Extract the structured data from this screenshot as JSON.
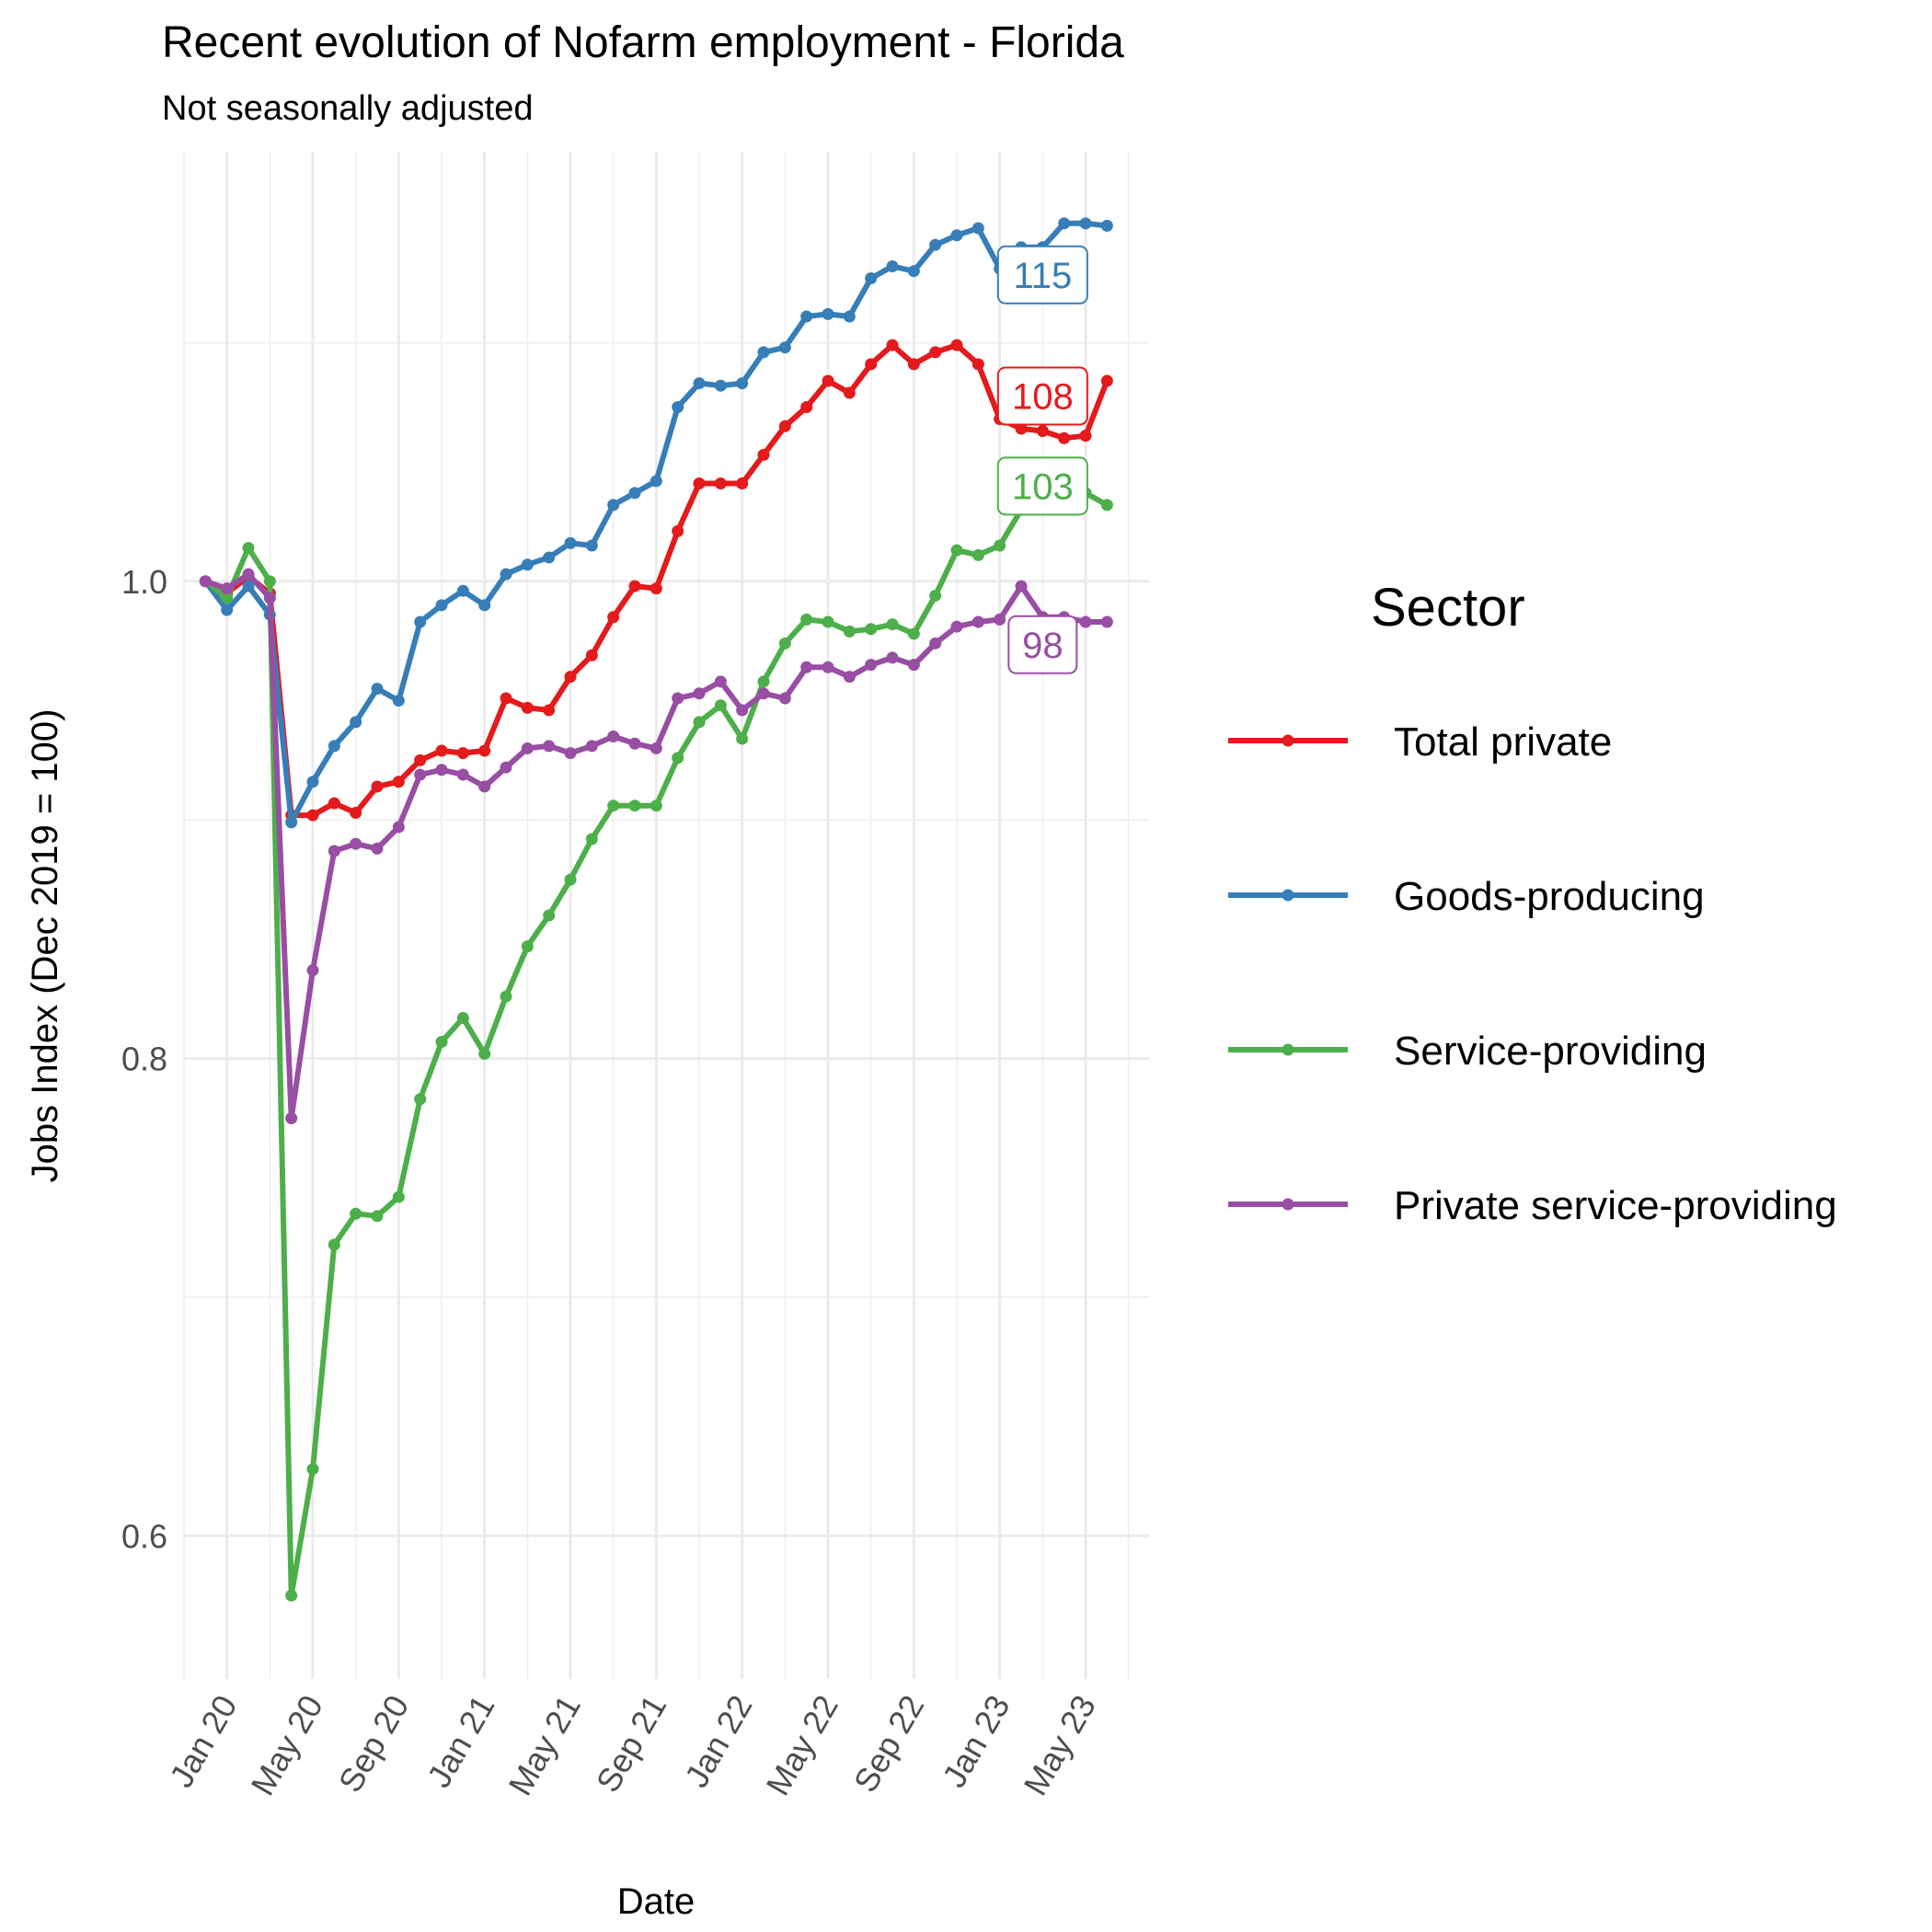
{
  "chart_data": {
    "type": "line",
    "title": "Recent evolution of Nofarm employment - Florida",
    "subtitle": "Not seasonally adjusted",
    "xlabel": "Date",
    "ylabel": "Jobs Index (Dec 2019 = 100)",
    "ylim": [
      0.54,
      1.18
    ],
    "y_ticks": [
      {
        "value": 0.6,
        "label": "0.6"
      },
      {
        "value": 0.8,
        "label": "0.8"
      },
      {
        "value": 1.0,
        "label": "1.0"
      }
    ],
    "x_range": [
      "2019-11",
      "2023-08"
    ],
    "x_ticks": [
      {
        "date": "2020-01",
        "label": "Jan 20"
      },
      {
        "date": "2020-05",
        "label": "May 20"
      },
      {
        "date": "2020-09",
        "label": "Sep 20"
      },
      {
        "date": "2021-01",
        "label": "Jan 21"
      },
      {
        "date": "2021-05",
        "label": "May 21"
      },
      {
        "date": "2021-09",
        "label": "Sep 21"
      },
      {
        "date": "2022-01",
        "label": "Jan 22"
      },
      {
        "date": "2022-05",
        "label": "May 22"
      },
      {
        "date": "2022-09",
        "label": "Sep 22"
      },
      {
        "date": "2023-01",
        "label": "Jan 23"
      },
      {
        "date": "2023-05",
        "label": "May 23"
      }
    ],
    "x": [
      "2019-12",
      "2020-01",
      "2020-02",
      "2020-03",
      "2020-04",
      "2020-05",
      "2020-06",
      "2020-07",
      "2020-08",
      "2020-09",
      "2020-10",
      "2020-11",
      "2020-12",
      "2021-01",
      "2021-02",
      "2021-03",
      "2021-04",
      "2021-05",
      "2021-06",
      "2021-07",
      "2021-08",
      "2021-09",
      "2021-10",
      "2021-11",
      "2021-12",
      "2022-01",
      "2022-02",
      "2022-03",
      "2022-04",
      "2022-05",
      "2022-06",
      "2022-07",
      "2022-08",
      "2022-09",
      "2022-10",
      "2022-11",
      "2022-12",
      "2023-01",
      "2023-02",
      "2023-03",
      "2023-04",
      "2023-05",
      "2023-06"
    ],
    "grid": true,
    "legend_position": "right",
    "legend_title": "Sector",
    "series": [
      {
        "name": "Total private",
        "color": "#E41A1C",
        "end_label": "108",
        "values": [
          1.0,
          0.995,
          1.002,
          0.995,
          0.902,
          0.902,
          0.907,
          0.903,
          0.914,
          0.916,
          0.925,
          0.929,
          0.928,
          0.929,
          0.951,
          0.947,
          0.946,
          0.96,
          0.969,
          0.985,
          0.998,
          0.997,
          1.021,
          1.041,
          1.041,
          1.041,
          1.053,
          1.065,
          1.073,
          1.084,
          1.079,
          1.091,
          1.099,
          1.091,
          1.096,
          1.099,
          1.091,
          1.068,
          1.064,
          1.063,
          1.06,
          1.061,
          1.084
        ]
      },
      {
        "name": "Goods-producing",
        "color": "#377EB8",
        "end_label": "115",
        "values": [
          1.0,
          0.988,
          0.998,
          0.986,
          0.899,
          0.916,
          0.931,
          0.941,
          0.955,
          0.95,
          0.983,
          0.99,
          0.996,
          0.99,
          1.003,
          1.007,
          1.01,
          1.016,
          1.015,
          1.032,
          1.037,
          1.042,
          1.073,
          1.083,
          1.082,
          1.083,
          1.096,
          1.098,
          1.111,
          1.112,
          1.111,
          1.127,
          1.132,
          1.13,
          1.141,
          1.145,
          1.148,
          1.131,
          1.14,
          1.14,
          1.15,
          1.15,
          1.149
        ]
      },
      {
        "name": "Service-providing",
        "color": "#4DAF4A",
        "end_label": "103",
        "values": [
          1.0,
          0.993,
          1.014,
          1.0,
          0.575,
          0.628,
          0.722,
          0.735,
          0.734,
          0.742,
          0.783,
          0.807,
          0.817,
          0.802,
          0.826,
          0.847,
          0.86,
          0.875,
          0.892,
          0.906,
          0.906,
          0.906,
          0.926,
          0.941,
          0.948,
          0.934,
          0.958,
          0.974,
          0.984,
          0.983,
          0.979,
          0.98,
          0.982,
          0.978,
          0.994,
          1.013,
          1.011,
          1.015,
          1.03,
          1.038,
          1.037,
          1.037,
          1.032
        ]
      },
      {
        "name": "Private service-providing",
        "color": "#984EA3",
        "end_label": "98",
        "values": [
          1.0,
          0.997,
          1.003,
          0.993,
          0.775,
          0.837,
          0.887,
          0.89,
          0.888,
          0.897,
          0.919,
          0.921,
          0.919,
          0.914,
          0.922,
          0.93,
          0.931,
          0.928,
          0.931,
          0.935,
          0.932,
          0.93,
          0.951,
          0.953,
          0.958,
          0.946,
          0.953,
          0.951,
          0.964,
          0.964,
          0.96,
          0.965,
          0.968,
          0.965,
          0.974,
          0.981,
          0.983,
          0.984,
          0.998,
          0.985,
          0.985,
          0.983,
          0.983
        ]
      }
    ]
  }
}
